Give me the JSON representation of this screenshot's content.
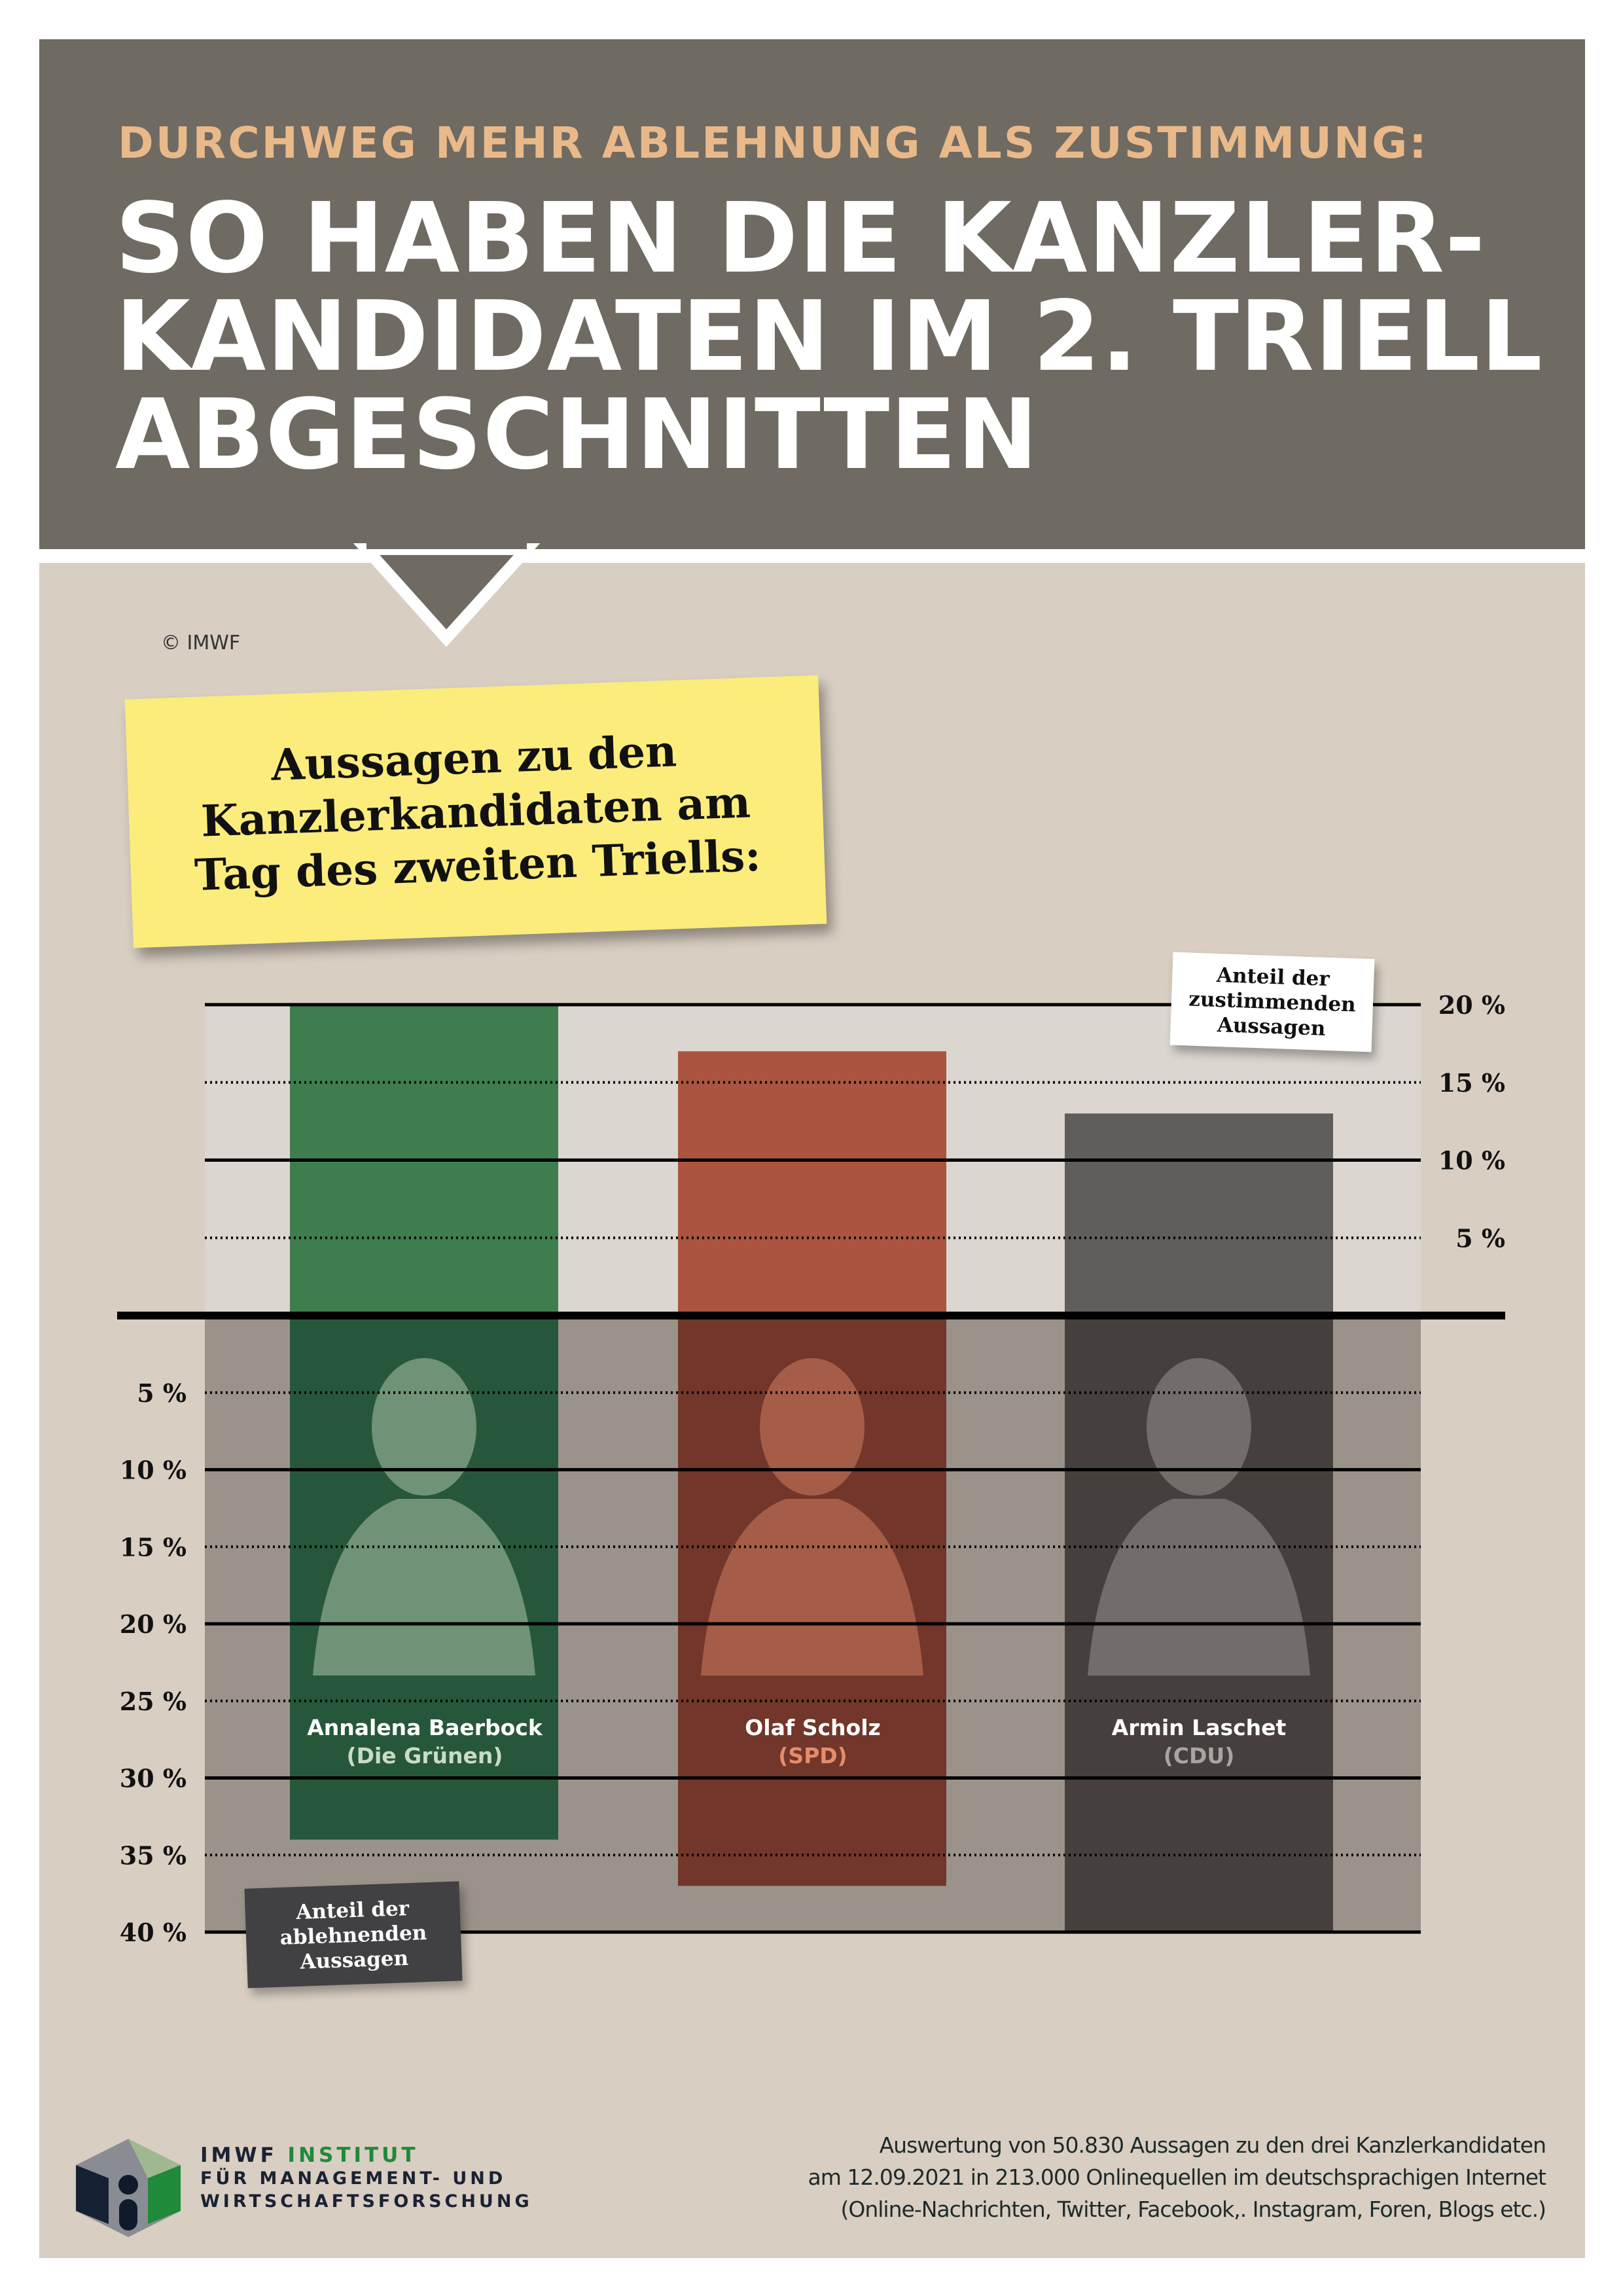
{
  "header": {
    "subtitle": "DURCHWEG MEHR ABLEHNUNG ALS ZUSTIMMUNG:",
    "title_lines": [
      "SO HABEN DIE KANZLER-",
      "KANDIDATEN IM 2. TRIELL",
      "ABGESCHNITTEN"
    ]
  },
  "copyright": "© IMWF",
  "note": {
    "lines": [
      "Aussagen zu den",
      "Kanzlerkandidaten am",
      "Tag des zweiten Triells:"
    ]
  },
  "approval_note": {
    "lines": [
      "Anteil der",
      "zustimmenden",
      "Aussagen"
    ]
  },
  "rejection_note": {
    "lines": [
      "Anteil der",
      "ablehnenden",
      "Aussagen"
    ]
  },
  "candidates": [
    {
      "name": "Annalena Baerbock",
      "party": "(Die Grünen)"
    },
    {
      "name": "Olaf Scholz",
      "party": "(SPD)"
    },
    {
      "name": "Armin Laschet",
      "party": "(CDU)"
    }
  ],
  "chart_data": {
    "type": "bar",
    "title": "Aussagen zu den Kanzlerkandidaten am Tag des zweiten Triells",
    "categories": [
      "Annalena Baerbock (Die Grünen)",
      "Olaf Scholz (SPD)",
      "Armin Laschet (CDU)"
    ],
    "series": [
      {
        "name": "Anteil der zustimmenden Aussagen",
        "values": [
          20,
          17,
          13
        ],
        "unit": "%"
      },
      {
        "name": "Anteil der ablehnenden Aussagen",
        "values": [
          34,
          37,
          40
        ],
        "unit": "%"
      }
    ],
    "approval_ticks": [
      "20 %",
      "15 %",
      "10 %",
      "5 %"
    ],
    "approval_tick_values": [
      20,
      15,
      10,
      5
    ],
    "rejection_ticks": [
      "5 %",
      "10 %",
      "15 %",
      "20 %",
      "25 %",
      "30 %",
      "35 %",
      "40 %"
    ],
    "rejection_tick_values": [
      5,
      10,
      15,
      20,
      25,
      30,
      35,
      40
    ],
    "approval_ylim": [
      0,
      20
    ],
    "rejection_ylim": [
      0,
      40
    ],
    "colors": {
      "approval": [
        "#3e7d4e",
        "#ab543f",
        "#5f5e5d"
      ],
      "rejection": [
        "#27573a",
        "#72362a",
        "#45403d"
      ],
      "party_label": [
        "#c9dcc3",
        "#e58d6b",
        "#a8a5a2"
      ]
    }
  },
  "footer": {
    "logo_line1a": "IMWF ",
    "logo_line1b": "INSTITUT",
    "logo_line2": "FÜR MANAGEMENT- UND",
    "logo_line3": "WIRTSCHAFTSFORSCHUNG",
    "source_lines": [
      "Auswertung von 50.830 Aussagen zu den drei Kanzlerkandidaten",
      "am 12.09.2021 in 213.000 Onlinequellen im deutschsprachigen Internet",
      "(Online-Nachrichten, Twitter, Facebook,. Instagram, Foren, Blogs etc.)"
    ]
  }
}
